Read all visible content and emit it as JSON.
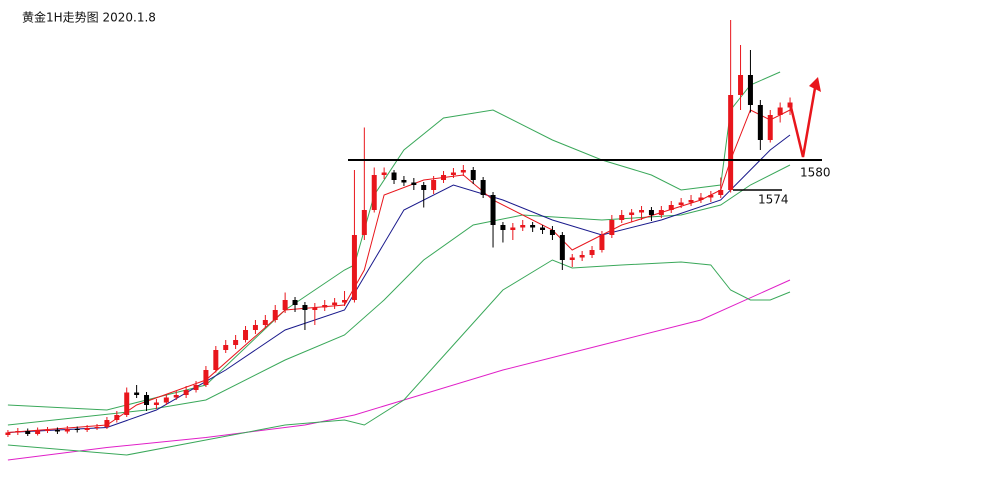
{
  "chart_data": {
    "type": "candlestick",
    "title": "黄金1H走势图 2020.1.8",
    "up_color": "#e8161c",
    "down_color": "#000000",
    "xlim": [
      -0.8,
      99.5
    ],
    "ylim": [
      1515.8,
      1612
    ],
    "candles": [
      [
        1525,
        1526,
        1524.6,
        1525.5
      ],
      [
        1525.5,
        1526.4,
        1525,
        1525.8
      ],
      [
        1525.8,
        1526.3,
        1524.8,
        1525.2
      ],
      [
        1525.2,
        1526.5,
        1524.9,
        1525.9
      ],
      [
        1525.9,
        1526.6,
        1525.4,
        1526
      ],
      [
        1526,
        1526.5,
        1525.2,
        1525.7
      ],
      [
        1525.7,
        1526.8,
        1525.3,
        1526.2
      ],
      [
        1526.2,
        1526.7,
        1525.5,
        1526
      ],
      [
        1526,
        1527,
        1525.6,
        1526.4
      ],
      [
        1526.4,
        1527.2,
        1526,
        1526.6
      ],
      [
        1526.6,
        1528.6,
        1526.2,
        1528
      ],
      [
        1528,
        1529.8,
        1527.5,
        1529
      ],
      [
        1529,
        1534.5,
        1528.6,
        1533.5
      ],
      [
        1533.5,
        1535,
        1532.4,
        1533
      ],
      [
        1533,
        1533.6,
        1529.8,
        1531
      ],
      [
        1531,
        1532.2,
        1530.2,
        1531.5
      ],
      [
        1531.5,
        1533.2,
        1531,
        1532.5
      ],
      [
        1532.5,
        1533.8,
        1532,
        1533
      ],
      [
        1533,
        1534.8,
        1532.4,
        1534
      ],
      [
        1534,
        1535.8,
        1533.5,
        1535
      ],
      [
        1535,
        1538.8,
        1534.6,
        1538
      ],
      [
        1538,
        1542.8,
        1537.5,
        1542
      ],
      [
        1542,
        1544,
        1541.4,
        1543
      ],
      [
        1543,
        1545,
        1542.2,
        1544
      ],
      [
        1544,
        1546.8,
        1543.5,
        1546
      ],
      [
        1546,
        1548,
        1545.2,
        1547
      ],
      [
        1547,
        1549,
        1546.4,
        1548
      ],
      [
        1548,
        1551,
        1547.5,
        1550
      ],
      [
        1550,
        1553.5,
        1549.4,
        1552
      ],
      [
        1552,
        1552.6,
        1549.6,
        1551
      ],
      [
        1551,
        1551.6,
        1546,
        1550
      ],
      [
        1550,
        1551.4,
        1547,
        1550.5
      ],
      [
        1550.5,
        1552,
        1549.8,
        1551
      ],
      [
        1551,
        1552.4,
        1550.2,
        1551.5
      ],
      [
        1551.5,
        1553.8,
        1550.8,
        1552
      ],
      [
        1552,
        1578,
        1551.5,
        1565
      ],
      [
        1565,
        1586.5,
        1564,
        1570
      ],
      [
        1570,
        1578.5,
        1569.5,
        1577
      ],
      [
        1577,
        1578.5,
        1576.2,
        1577.5
      ],
      [
        1577.5,
        1578,
        1575.2,
        1576
      ],
      [
        1576,
        1576.8,
        1574.8,
        1575.5
      ],
      [
        1575.5,
        1576.4,
        1574,
        1575
      ],
      [
        1575,
        1575.6,
        1570.5,
        1574
      ],
      [
        1574,
        1576.8,
        1573.2,
        1576
      ],
      [
        1576,
        1577.8,
        1575.4,
        1577
      ],
      [
        1577,
        1578.4,
        1576.4,
        1577.5
      ],
      [
        1577.5,
        1579,
        1576.8,
        1578
      ],
      [
        1578,
        1578.6,
        1575.2,
        1576
      ],
      [
        1576,
        1576.6,
        1572.4,
        1573
      ],
      [
        1573,
        1573.6,
        1562.5,
        1567
      ],
      [
        1567,
        1567.6,
        1563.5,
        1566
      ],
      [
        1566,
        1567.4,
        1564,
        1566.5
      ],
      [
        1566.5,
        1568,
        1565.8,
        1567
      ],
      [
        1567,
        1567.6,
        1565.6,
        1566.5
      ],
      [
        1566.5,
        1567,
        1565.2,
        1566
      ],
      [
        1566,
        1566.8,
        1564,
        1565
      ],
      [
        1565,
        1565.6,
        1558,
        1560
      ],
      [
        1560,
        1561.2,
        1558.6,
        1560.5
      ],
      [
        1560.5,
        1561.8,
        1559.8,
        1561
      ],
      [
        1561,
        1562.8,
        1560.4,
        1562
      ],
      [
        1562,
        1565.8,
        1561.5,
        1565
      ],
      [
        1565,
        1569,
        1564.4,
        1568
      ],
      [
        1568,
        1570,
        1567.4,
        1569
      ],
      [
        1569,
        1570.2,
        1567.5,
        1569.5
      ],
      [
        1569.5,
        1570.8,
        1568,
        1570
      ],
      [
        1570,
        1570.6,
        1567.8,
        1569
      ],
      [
        1569,
        1570.8,
        1568.4,
        1570
      ],
      [
        1570,
        1571.8,
        1569.4,
        1571
      ],
      [
        1571,
        1572.4,
        1570.4,
        1571.5
      ],
      [
        1571.5,
        1573,
        1570.8,
        1572
      ],
      [
        1572,
        1573.4,
        1571.4,
        1572.5
      ],
      [
        1572.5,
        1573.8,
        1571.6,
        1573
      ],
      [
        1573,
        1576.5,
        1572.4,
        1574
      ],
      [
        1574,
        1608,
        1573.5,
        1593
      ],
      [
        1593,
        1603,
        1590,
        1597
      ],
      [
        1597,
        1602,
        1589.5,
        1591
      ],
      [
        1591,
        1592,
        1582,
        1584
      ],
      [
        1584,
        1590,
        1583.5,
        1589
      ],
      [
        1589,
        1591.5,
        1587.5,
        1590.5
      ],
      [
        1590.5,
        1592.5,
        1589,
        1591.5
      ]
    ],
    "lines": [
      {
        "color": "#e020c8",
        "x": [
          0,
          10,
          20,
          30,
          35,
          40,
          50,
          60,
          70,
          79
        ],
        "values": [
          1520,
          1522.5,
          1524.5,
          1527,
          1529,
          1532,
          1538,
          1543,
          1548,
          1556
        ]
      },
      {
        "color": "#3aa85a",
        "x": [
          0,
          10,
          14,
          20,
          28,
          34,
          35,
          37,
          40,
          44,
          49,
          55,
          60,
          65,
          68,
          72,
          73,
          75,
          78
        ],
        "values": [
          1531,
          1530,
          1532,
          1535,
          1550,
          1558,
          1559,
          1573,
          1582,
          1588.4,
          1590,
          1584,
          1580,
          1577,
          1574,
          1575,
          1590,
          1595,
          1597.6
        ]
      },
      {
        "color": "#3aa85a",
        "x": [
          0,
          12,
          20,
          28,
          34,
          36,
          40,
          45,
          50,
          55,
          57,
          62,
          68,
          71,
          73,
          75,
          77,
          79
        ],
        "values": [
          1523,
          1521,
          1524,
          1527,
          1528,
          1527,
          1532,
          1543,
          1554,
          1560,
          1558.4,
          1559,
          1559.6,
          1559,
          1554,
          1552,
          1552,
          1553.6
        ]
      },
      {
        "color": "#3aa85a",
        "x": [
          0,
          14,
          20,
          28,
          34,
          38,
          42,
          47,
          52,
          60,
          68,
          72,
          75,
          79
        ],
        "values": [
          1527,
          1530,
          1532,
          1540,
          1545,
          1552,
          1560,
          1567,
          1569,
          1568,
          1569,
          1571,
          1575,
          1579
        ]
      },
      {
        "color": "#1a1a8c",
        "x": [
          0,
          10,
          15,
          22,
          28,
          34,
          37,
          40,
          45,
          50,
          55,
          60,
          66,
          72,
          74,
          77,
          79
        ],
        "values": [
          1525.5,
          1526.5,
          1530,
          1538,
          1546,
          1550,
          1560,
          1570,
          1575,
          1572,
          1568,
          1565,
          1568,
          1572,
          1576,
          1582,
          1585
        ]
      },
      {
        "color": "#e8161c",
        "x": [
          0,
          10,
          13,
          20,
          28,
          34,
          36,
          38,
          42,
          46,
          49,
          55,
          57,
          62,
          70,
          72,
          73,
          75,
          77,
          79
        ],
        "values": [
          1525.5,
          1527,
          1531,
          1536,
          1550,
          1551,
          1558,
          1573,
          1576,
          1577,
          1572,
          1566,
          1562,
          1567,
          1572,
          1574,
          1580,
          1590,
          1588,
          1590
        ]
      }
    ],
    "levels": [
      1580,
      1574
    ]
  }
}
